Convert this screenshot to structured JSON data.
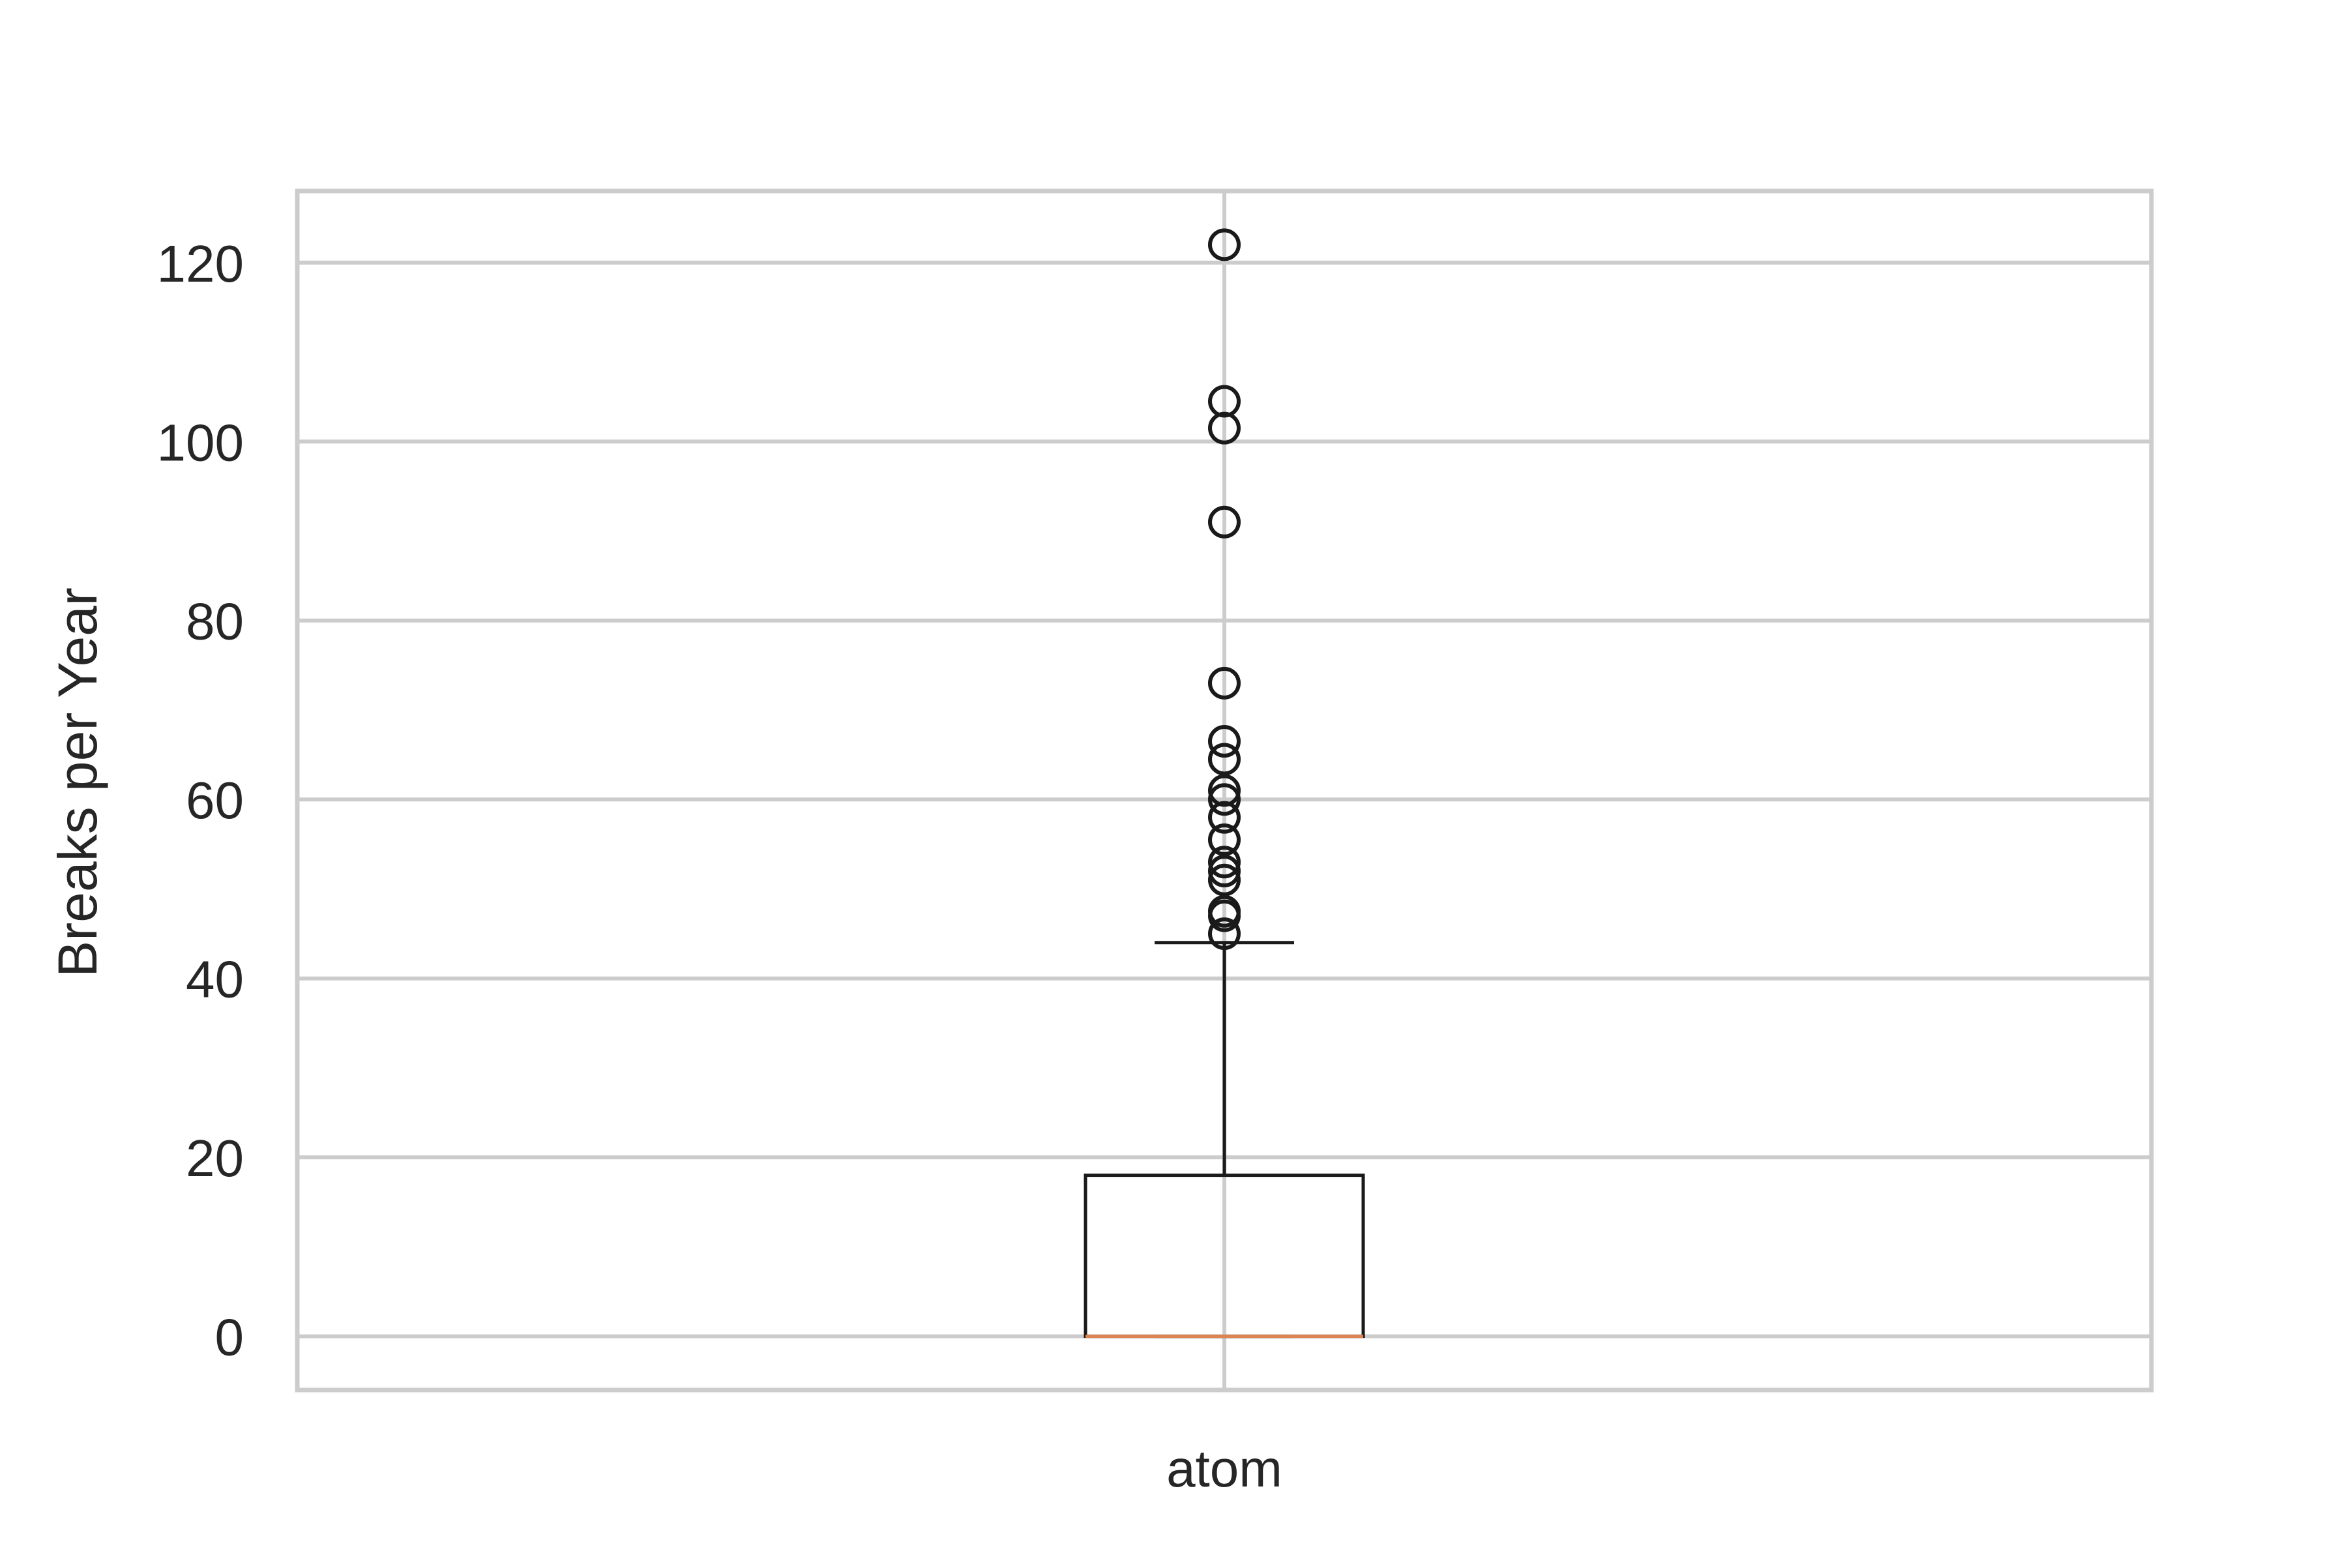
{
  "chart_data": {
    "type": "box",
    "title": "",
    "xlabel": "",
    "ylabel": "Breaks per Year",
    "categories": [
      "atom"
    ],
    "ylim": [
      -6,
      128
    ],
    "yticks": [
      0,
      20,
      40,
      60,
      80,
      100,
      120
    ],
    "grid": true,
    "boxes": [
      {
        "category": "atom",
        "whisker_low": 0,
        "q1": 0,
        "median": 0,
        "q3": 18,
        "whisker_high": 44,
        "outliers": [
          45,
          47,
          47.5,
          51,
          52,
          53,
          55.5,
          58,
          60,
          61,
          64.5,
          66.5,
          73,
          91,
          101.5,
          104.5,
          122
        ]
      }
    ],
    "colors": {
      "box": "#1a1a1a",
      "median": "#dd8452",
      "grid": "#cccccc",
      "frame": "#cccccc",
      "text": "#262626"
    }
  }
}
